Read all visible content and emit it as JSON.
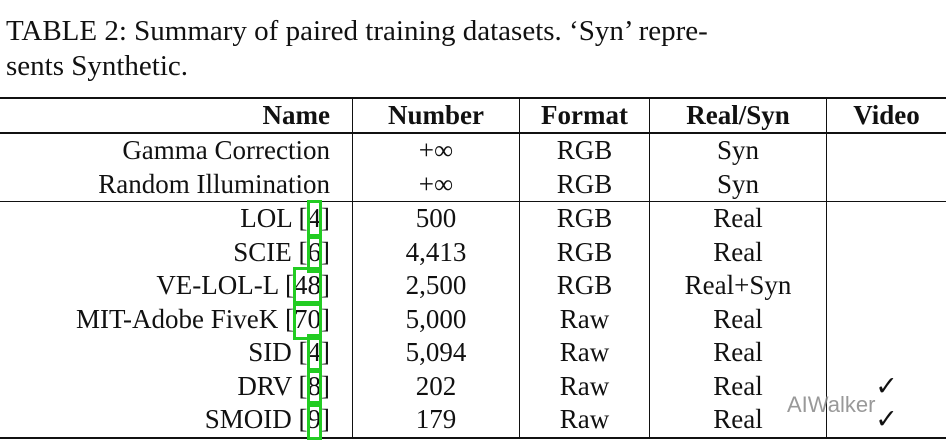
{
  "caption": [
    "TABLE 2: Summary of paired training datasets. ‘Syn’ repre-",
    "sents Synthetic."
  ],
  "table": {
    "header": [
      "Name",
      "Number",
      "Format",
      "Real/Syn",
      "Video"
    ],
    "groups": [
      [
        {
          "name": "Gamma Correction",
          "ref": null,
          "number": "+∞",
          "format": "RGB",
          "real_syn": "Syn",
          "video": null
        },
        {
          "name": "Random Illumination",
          "ref": null,
          "number": "+∞",
          "format": "RGB",
          "real_syn": "Syn",
          "video": null
        }
      ],
      [
        {
          "name": "LOL ",
          "ref": "[4]",
          "number": "500",
          "format": "RGB",
          "real_syn": "Real",
          "video": null
        },
        {
          "name": "SCIE ",
          "ref": "[6]",
          "number": "4,413",
          "format": "RGB",
          "real_syn": "Real",
          "video": null
        },
        {
          "name": "VE-LOL-L ",
          "ref": "[48]",
          "number": "2,500",
          "format": "RGB",
          "real_syn": "Real+Syn",
          "video": null
        },
        {
          "name": "MIT-Adobe FiveK ",
          "ref": "[70]",
          "number": "5,000",
          "format": "Raw",
          "real_syn": "Real",
          "video": null
        },
        {
          "name": "SID ",
          "ref": "[4]",
          "number": "5,094",
          "format": "Raw",
          "real_syn": "Real",
          "video": null
        },
        {
          "name": "DRV ",
          "ref": "[8]",
          "number": "202",
          "format": "Raw",
          "real_syn": "Real",
          "video": "✓"
        },
        {
          "name": "SMOID ",
          "ref": "[9]",
          "number": "179",
          "format": "Raw",
          "real_syn": "Real",
          "video": "✓"
        }
      ]
    ]
  },
  "watermark": "AIWalker"
}
